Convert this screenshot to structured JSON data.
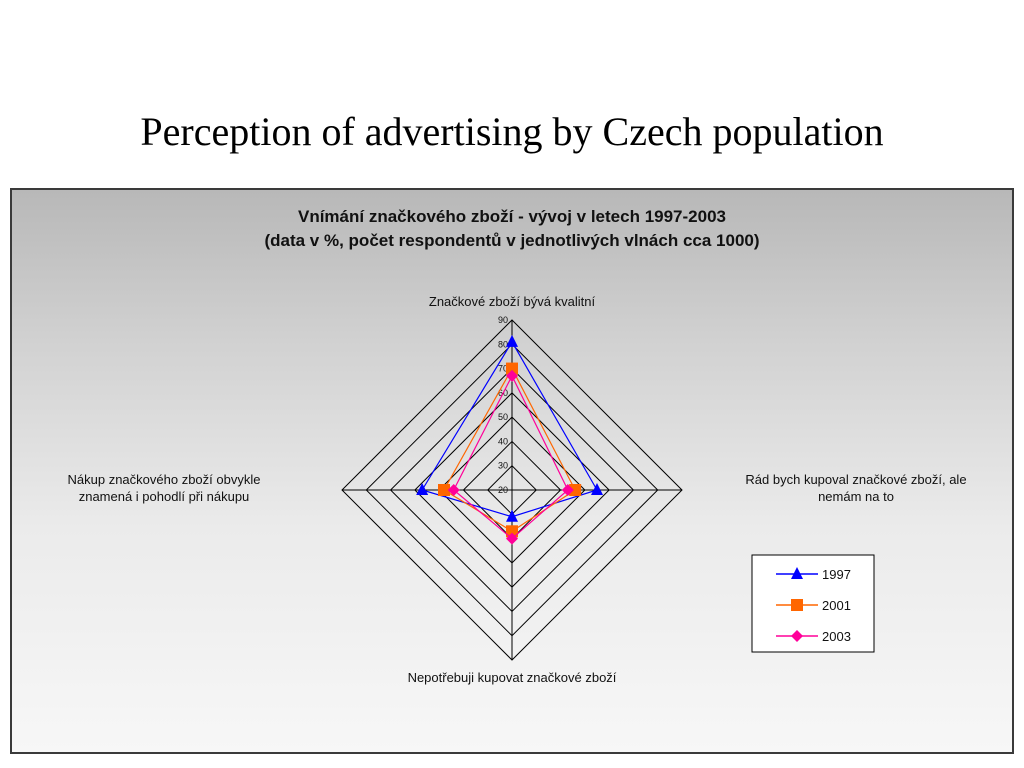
{
  "slide": {
    "title": "Perception of advertising by Czech population"
  },
  "chart_data": {
    "type": "radar",
    "title": "Vnímání značkového zboží - vývoj v letech 1997-2003",
    "subtitle": "(data v %, počet respondentů v jednotlivých vlnách cca 1000)",
    "axes": [
      {
        "lines": [
          "Značkové zboží bývá kvalitní"
        ]
      },
      {
        "lines": [
          "Rád bych kupoval značkové zboží, ale",
          "nemám na to"
        ]
      },
      {
        "lines": [
          "Nepotřebuji kupovat značkové zboží"
        ]
      },
      {
        "lines": [
          "Nákup značkového zboží obvykle",
          "znamená i pohodlí při nákupu"
        ]
      }
    ],
    "range": [
      20,
      90
    ],
    "ticks": [
      20,
      30,
      40,
      50,
      60,
      70,
      80,
      90
    ],
    "series": [
      {
        "name": "1997",
        "values": [
          81,
          55,
          31,
          57
        ],
        "color": "#0000ff",
        "marker": "triangle"
      },
      {
        "name": "2001",
        "values": [
          70,
          46,
          37,
          48
        ],
        "color": "#ff6600",
        "marker": "square"
      },
      {
        "name": "2003",
        "values": [
          67,
          43,
          40,
          44
        ],
        "color": "#ff0099",
        "marker": "diamond"
      }
    ],
    "legend": {
      "position": "bottom-right"
    },
    "colors": {
      "grid": "#000000",
      "background_top": "#b8b8b8",
      "background_bottom": "#f7f7f7"
    }
  }
}
